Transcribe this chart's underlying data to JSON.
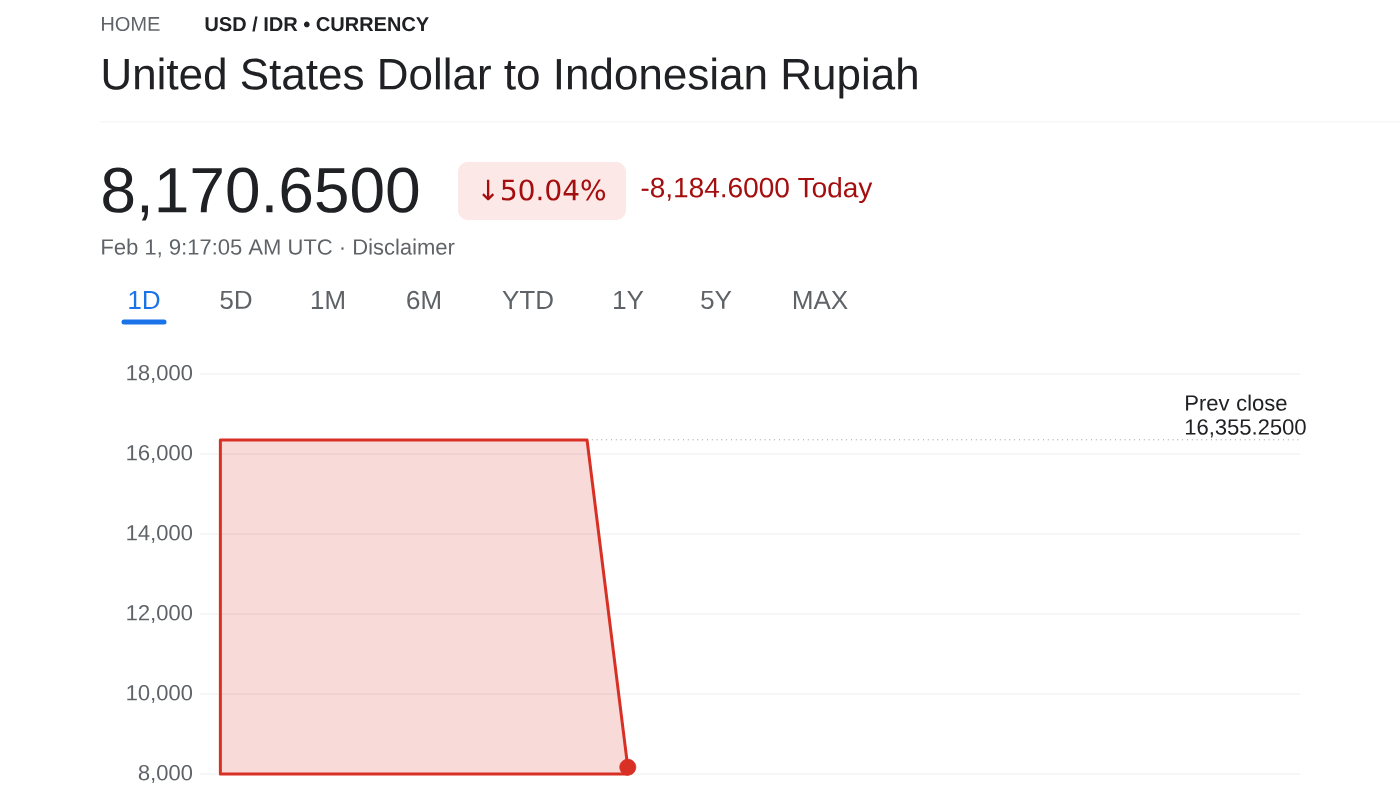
{
  "chart_data": {
    "type": "area",
    "title": "United States Dollar to Indonesian Rupiah",
    "annotations": [
      "HOME",
      "USD / IDR • CURRENCY",
      "8,170.6500",
      "↓50.04%",
      "-8,184.6000 Today",
      "Feb 1, 9:17:05 AM UTC · Disclaimer",
      "1D",
      "5D",
      "1M",
      "6M",
      "YTD",
      "1Y",
      "5Y",
      "MAX"
    ],
    "categories": [
      null,
      null,
      null,
      null,
      null,
      null,
      null,
      null,
      null,
      null,
      null,
      null,
      null,
      null,
      null,
      null,
      null,
      null,
      null,
      null,
      null,
      null,
      null,
      null,
      null,
      null,
      null
    ],
    "series": [
      {
        "color": "#d93025",
        "values": [
          16350,
          16350,
          16350,
          16350,
          16350,
          16350,
          16350,
          16350,
          16350,
          16350,
          8170,
          null,
          null,
          null,
          null,
          null,
          null,
          null,
          null,
          null,
          null,
          null,
          null,
          null,
          null,
          null,
          null
        ]
      },
      {
        "type": "scatter",
        "color": "#d93025",
        "marker": "circle",
        "values": [
          null,
          null,
          null,
          null,
          null,
          null,
          null,
          null,
          null,
          null,
          8170,
          null,
          null,
          null,
          null,
          null,
          null,
          null,
          null,
          null,
          null,
          null,
          null,
          null,
          null,
          null,
          null
        ]
      }
    ],
    "ylim": [
      8000,
      18000
    ],
    "yticks": [
      {
        "value": 8000,
        "label": "8,000"
      },
      {
        "value": 10000,
        "label": "10,000"
      },
      {
        "value": 12000,
        "label": "12,000"
      },
      {
        "value": 14000,
        "label": "14,000"
      },
      {
        "value": 16000,
        "label": "16,000"
      },
      {
        "value": 18000,
        "label": "18,000"
      }
    ],
    "grid": "y",
    "ref_lines": [
      {
        "axis": "y",
        "value": 16355.25,
        "label": "Prev close 16,355.2500",
        "color": "#5f6368",
        "line_style": "dotted"
      }
    ]
  }
}
